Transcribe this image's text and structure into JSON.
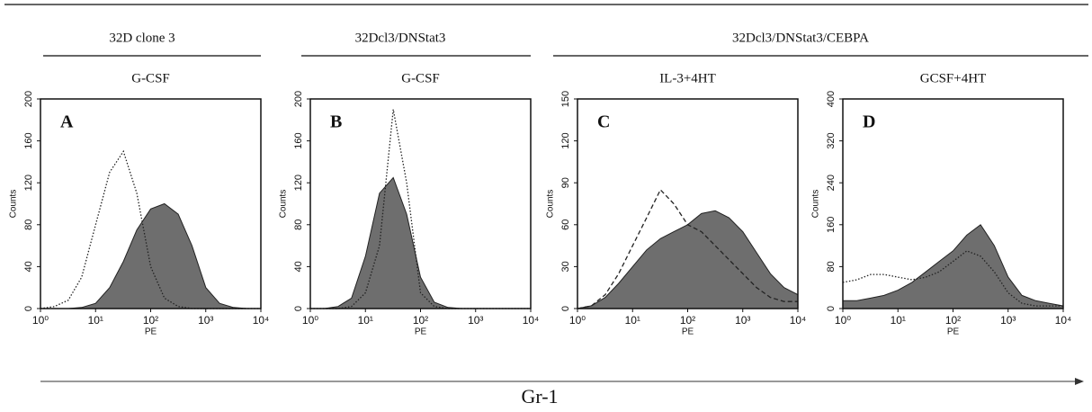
{
  "header": {
    "groups": [
      "32D clone 3",
      "32Dcl3/DNStat3",
      "32Dcl3/DNStat3/CEBPA"
    ],
    "axis_label": "Gr-1"
  },
  "chart_data": [
    {
      "type": "area",
      "title": "G-CSF",
      "panel": "A",
      "x_label": "PE",
      "y_label": "Counts",
      "log_x": true,
      "x": [
        1,
        1.8,
        3.2,
        5.6,
        10,
        18,
        32,
        56,
        100,
        178,
        316,
        562,
        1000,
        1780,
        3160,
        5620,
        10000
      ],
      "series": [
        {
          "color": "#6e6e6e",
          "style": "filled",
          "values": [
            0,
            0,
            0,
            1,
            5,
            20,
            45,
            75,
            95,
            100,
            90,
            60,
            20,
            5,
            1,
            0,
            0
          ]
        },
        {
          "color": "#222222",
          "style": "dotted",
          "values": [
            0,
            2,
            8,
            30,
            80,
            130,
            150,
            110,
            40,
            10,
            2,
            0,
            0,
            0,
            0,
            0,
            0
          ]
        }
      ],
      "xlim": [
        1,
        10000
      ],
      "xticks": [
        {
          "value": 1,
          "label": "10⁰"
        },
        {
          "value": 10,
          "label": "10¹"
        },
        {
          "value": 100,
          "label": "10²"
        },
        {
          "value": 1000,
          "label": "10³"
        },
        {
          "value": 10000,
          "label": "10⁴"
        }
      ],
      "ylim": [
        0,
        200
      ],
      "yticks": [
        0,
        40,
        80,
        120,
        160,
        200
      ]
    },
    {
      "type": "area",
      "title": "G-CSF",
      "panel": "B",
      "x_label": "PE",
      "y_label": "Counts",
      "log_x": true,
      "x": [
        1,
        1.8,
        3.2,
        5.6,
        10,
        18,
        32,
        56,
        100,
        178,
        316,
        562,
        1000,
        1780,
        3160,
        5620,
        10000
      ],
      "series": [
        {
          "color": "#6e6e6e",
          "style": "filled",
          "values": [
            0,
            0,
            2,
            10,
            50,
            110,
            125,
            90,
            30,
            6,
            1,
            0,
            0,
            0,
            0,
            0,
            0
          ]
        },
        {
          "color": "#222222",
          "style": "dotted",
          "values": [
            0,
            0,
            0,
            2,
            15,
            60,
            190,
            120,
            15,
            2,
            0,
            0,
            0,
            0,
            0,
            0,
            0
          ]
        }
      ],
      "xlim": [
        1,
        10000
      ],
      "xticks": [
        {
          "value": 1,
          "label": "10⁰"
        },
        {
          "value": 10,
          "label": "10¹"
        },
        {
          "value": 100,
          "label": "10²"
        },
        {
          "value": 1000,
          "label": "10³"
        },
        {
          "value": 10000,
          "label": "10⁴"
        }
      ],
      "ylim": [
        0,
        200
      ],
      "yticks": [
        0,
        40,
        80,
        120,
        160,
        200
      ]
    },
    {
      "type": "area",
      "title": "IL-3+4HT",
      "panel": "C",
      "x_label": "PE",
      "y_label": "Counts",
      "log_x": true,
      "x": [
        1,
        1.8,
        3.2,
        5.6,
        10,
        18,
        32,
        56,
        100,
        178,
        316,
        562,
        1000,
        1780,
        3160,
        5620,
        10000
      ],
      "series": [
        {
          "color": "#6e6e6e",
          "style": "filled",
          "values": [
            0,
            2,
            8,
            18,
            30,
            42,
            50,
            55,
            60,
            68,
            70,
            65,
            55,
            40,
            25,
            15,
            10
          ]
        },
        {
          "color": "#222222",
          "style": "dashed",
          "values": [
            0,
            2,
            10,
            25,
            45,
            65,
            85,
            75,
            60,
            55,
            45,
            35,
            25,
            15,
            8,
            5,
            5
          ]
        }
      ],
      "xlim": [
        1,
        10000
      ],
      "xticks": [
        {
          "value": 1,
          "label": "10⁰"
        },
        {
          "value": 10,
          "label": "10¹"
        },
        {
          "value": 100,
          "label": "10²"
        },
        {
          "value": 1000,
          "label": "10³"
        },
        {
          "value": 10000,
          "label": "10⁴"
        }
      ],
      "ylim": [
        0,
        150
      ],
      "yticks": [
        0,
        30,
        60,
        90,
        120,
        150
      ]
    },
    {
      "type": "area",
      "title": "GCSF+4HT",
      "panel": "D",
      "x_label": "PE",
      "y_label": "Counts",
      "log_x": true,
      "x": [
        1,
        1.8,
        3.2,
        5.6,
        10,
        18,
        32,
        56,
        100,
        178,
        316,
        562,
        1000,
        1780,
        3160,
        5620,
        10000
      ],
      "series": [
        {
          "color": "#6e6e6e",
          "style": "filled",
          "values": [
            15,
            15,
            20,
            25,
            35,
            50,
            70,
            90,
            110,
            140,
            160,
            120,
            60,
            25,
            15,
            10,
            5
          ]
        },
        {
          "color": "#222222",
          "style": "dotted",
          "values": [
            50,
            55,
            65,
            65,
            60,
            55,
            60,
            70,
            90,
            110,
            100,
            70,
            30,
            10,
            5,
            5,
            5
          ]
        }
      ],
      "xlim": [
        1,
        10000
      ],
      "xticks": [
        {
          "value": 1,
          "label": "10⁰"
        },
        {
          "value": 10,
          "label": "10¹"
        },
        {
          "value": 100,
          "label": "10²"
        },
        {
          "value": 1000,
          "label": "10³"
        },
        {
          "value": 10000,
          "label": "10⁴"
        }
      ],
      "ylim": [
        0,
        400
      ],
      "yticks": [
        0,
        80,
        160,
        240,
        320,
        400
      ]
    }
  ]
}
